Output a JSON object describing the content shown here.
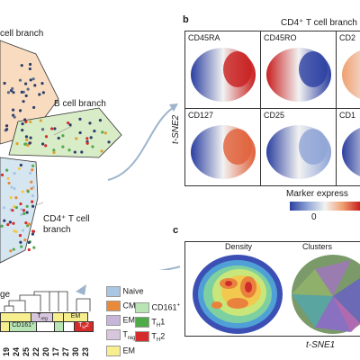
{
  "panel_a": {
    "branch_top": "cell branch",
    "b_branch": "B cell branch",
    "cd4_line1": "CD4⁺ T cell",
    "cd4_line2": "branch",
    "lineage_label": "ge"
  },
  "panel_b": {
    "letter": "b",
    "title": "CD4⁺ T cell branch",
    "tiles": [
      "CD45RA",
      "CD45RO",
      "CD2",
      "CD127",
      "CD25",
      "CD1"
    ],
    "y_axis": "t-SNE2",
    "colorbar_title": "Marker express",
    "colorbar_min": "0",
    "colors": {
      "low": "#2b3fa0",
      "mid": "#f2f2f2",
      "high": "#c81e1e"
    }
  },
  "panel_c": {
    "letter": "c",
    "density_title": "Density",
    "clusters_title": "Clusters",
    "x_axis": "t-SNE1"
  },
  "legend": {
    "items": [
      {
        "label": "Naive",
        "color": "#a9c6e3"
      },
      {
        "label": "CM",
        "color": "#e88a3a"
      },
      {
        "label": "EMRA",
        "color": "#c7b6d9"
      },
      {
        "label": "T",
        "sub": "reg",
        "color": "#d8c6de"
      },
      {
        "label": "EM",
        "color": "#f7ef8d"
      }
    ],
    "items_right": [
      {
        "label": "CD161",
        "sup": "+",
        "color": "#b9e5b4"
      },
      {
        "label": "T",
        "sub": "H",
        "tail": "1",
        "color": "#4faa48"
      },
      {
        "label": "T",
        "sub": "H",
        "tail": "2",
        "color": "#d62b2b"
      }
    ]
  },
  "lineage_cells": {
    "treg": "T",
    "treg_sub": "reg",
    "em": "EM",
    "cd161": "CD161⁺",
    "th2": "T",
    "th2_sub": "H",
    "th2_tail": "2"
  },
  "cluster_numbers": [
    "19",
    "24",
    "25",
    "22",
    "20",
    "17",
    "27",
    "30",
    "23"
  ]
}
